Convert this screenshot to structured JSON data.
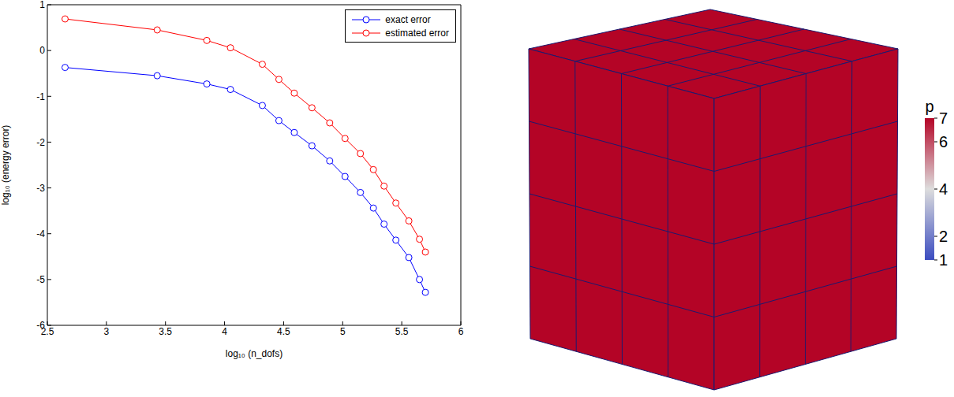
{
  "chart_data": {
    "type": "line",
    "x_label": "log₁₀ (n_dofs)",
    "y_label": "log₁₀ (energy error)",
    "x": [
      2.65,
      3.43,
      3.85,
      4.05,
      4.32,
      4.46,
      4.59,
      4.74,
      4.89,
      5.02,
      5.15,
      5.26,
      5.35,
      5.45,
      5.56,
      5.65,
      5.7
    ],
    "series": [
      {
        "name": "exact error",
        "color": "#0000ff",
        "marker": "circle",
        "values": [
          -0.37,
          -0.55,
          -0.73,
          -0.85,
          -1.2,
          -1.53,
          -1.79,
          -2.08,
          -2.41,
          -2.75,
          -3.1,
          -3.44,
          -3.79,
          -4.14,
          -4.52,
          -5.0,
          -5.28
        ]
      },
      {
        "name": "estimated error",
        "color": "#ff0000",
        "marker": "circle",
        "values": [
          0.69,
          0.45,
          0.22,
          0.06,
          -0.3,
          -0.63,
          -0.93,
          -1.25,
          -1.58,
          -1.92,
          -2.25,
          -2.6,
          -2.96,
          -3.33,
          -3.72,
          -4.12,
          -4.4
        ]
      }
    ],
    "xlim": [
      2.5,
      6
    ],
    "xticks": [
      2.5,
      3,
      3.5,
      4,
      4.5,
      5,
      5.5,
      6
    ],
    "ylim": [
      -6,
      1
    ],
    "yticks": [
      -6,
      -5,
      -4,
      -3,
      -2,
      -1,
      0,
      1
    ],
    "legend": "upper right",
    "grid": false
  },
  "figure": {
    "colorbar": {
      "label": "p",
      "range": [
        1,
        7
      ],
      "ticks": [
        1,
        2,
        4,
        6,
        7
      ]
    }
  }
}
